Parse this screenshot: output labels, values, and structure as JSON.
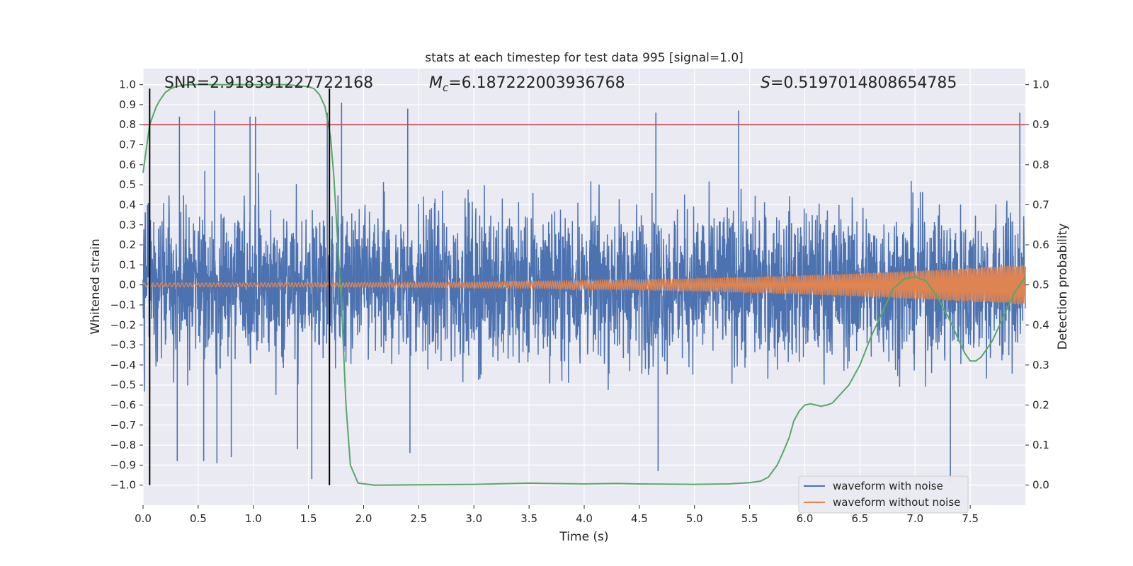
{
  "chart_data": {
    "type": "line",
    "title": "stats at each timestep for test data 995 [signal=1.0]",
    "xlabel": "Time (s)",
    "ylabel_left": "Whitened strain",
    "ylabel_right": "Detection probability",
    "xlim": [
      0.0,
      8.0
    ],
    "ylim_left": [
      -1.1,
      1.08
    ],
    "ylim_right": [
      -0.05,
      1.04
    ],
    "x_ticks": [
      "0.0",
      "0.5",
      "1.0",
      "1.5",
      "2.0",
      "2.5",
      "3.0",
      "3.5",
      "4.0",
      "4.5",
      "5.0",
      "5.5",
      "6.0",
      "6.5",
      "7.0",
      "7.5"
    ],
    "y_left_ticks": [
      "1.0",
      "0.9",
      "0.8",
      "0.7",
      "0.6",
      "0.5",
      "0.4",
      "0.3",
      "0.2",
      "0.1",
      "0.0",
      "−0.1",
      "−0.2",
      "−0.3",
      "−0.4",
      "−0.5",
      "−0.6",
      "−0.7",
      "−0.8",
      "−0.9",
      "−1.0"
    ],
    "y_right_ticks": [
      "1.0",
      "0.9",
      "0.8",
      "0.7",
      "0.6",
      "0.5",
      "0.4",
      "0.3",
      "0.2",
      "0.1",
      "0.0"
    ],
    "grid": true,
    "legend_placement": "lower-right",
    "annotations": [
      {
        "id": "snr",
        "label": "SNR=2.918391227722168"
      },
      {
        "id": "mc",
        "label_var": "M",
        "label_sub": "c",
        "label_value": "=6.187222003936768"
      },
      {
        "id": "s",
        "label_var": "S",
        "label_value": "=0.5197014808654785"
      }
    ],
    "threshold_line": {
      "axis": "right",
      "y": 0.9,
      "color": "#c44e52"
    },
    "vertical_markers": {
      "x": [
        0.06,
        1.69
      ],
      "y_range": [
        -1.0,
        0.98
      ],
      "color": "#000000"
    },
    "series": [
      {
        "name": "waveform with noise",
        "color": "#4c72b0",
        "axis": "left",
        "kind": "noise",
        "envelope_typical": 0.45,
        "peaks": [
          {
            "x": 0.33,
            "y": 0.84
          },
          {
            "x": 0.65,
            "y": 0.87
          },
          {
            "x": 0.97,
            "y": 0.84
          },
          {
            "x": 1.02,
            "y": 0.84
          },
          {
            "x": 1.67,
            "y": 0.86
          },
          {
            "x": 1.8,
            "y": 0.91
          },
          {
            "x": 2.4,
            "y": 0.88
          },
          {
            "x": 4.65,
            "y": 0.86
          },
          {
            "x": 5.4,
            "y": 0.87
          },
          {
            "x": 7.95,
            "y": 0.86
          },
          {
            "x": 0.31,
            "y": -0.88
          },
          {
            "x": 0.55,
            "y": -0.88
          },
          {
            "x": 0.67,
            "y": -0.89
          },
          {
            "x": 0.8,
            "y": -0.86
          },
          {
            "x": 1.4,
            "y": -0.82
          },
          {
            "x": 1.53,
            "y": -0.97
          },
          {
            "x": 2.42,
            "y": -0.84
          },
          {
            "x": 4.67,
            "y": -0.93
          },
          {
            "x": 7.32,
            "y": -1.0
          }
        ]
      },
      {
        "name": "waveform without noise",
        "color": "#dd8452",
        "axis": "left",
        "kind": "chirp",
        "amplitude_start": 0.01,
        "amplitude_end": 0.1
      },
      {
        "name": "",
        "color": "#55a868",
        "axis": "right",
        "kind": "line",
        "x": [
          0.0,
          0.03,
          0.06,
          0.1,
          0.12,
          0.15,
          0.2,
          0.25,
          0.3,
          0.4,
          0.6,
          1.0,
          1.3,
          1.5,
          1.55,
          1.6,
          1.65,
          1.7,
          1.73,
          1.76,
          1.8,
          1.84,
          1.88,
          1.95,
          2.1,
          3.0,
          3.5,
          4.0,
          4.3,
          4.5,
          5.0,
          5.3,
          5.5,
          5.6,
          5.67,
          5.75,
          5.8,
          5.86,
          5.9,
          5.95,
          6.0,
          6.05,
          6.1,
          6.15,
          6.2,
          6.25,
          6.3,
          6.4,
          6.5,
          6.6,
          6.7,
          6.8,
          6.9,
          7.0,
          7.1,
          7.2,
          7.3,
          7.4,
          7.45,
          7.5,
          7.55,
          7.6,
          7.7,
          7.8,
          7.9,
          7.95,
          8.0
        ],
        "y": [
          0.78,
          0.84,
          0.9,
          0.93,
          0.945,
          0.96,
          0.98,
          0.99,
          0.995,
          1.0,
          1.0,
          1.0,
          1.0,
          0.995,
          0.99,
          0.975,
          0.945,
          0.87,
          0.77,
          0.63,
          0.45,
          0.2,
          0.05,
          0.005,
          0.0,
          0.002,
          0.005,
          0.003,
          0.004,
          0.003,
          0.002,
          0.003,
          0.006,
          0.01,
          0.02,
          0.05,
          0.08,
          0.12,
          0.16,
          0.185,
          0.2,
          0.203,
          0.2,
          0.197,
          0.2,
          0.205,
          0.22,
          0.25,
          0.3,
          0.37,
          0.43,
          0.49,
          0.515,
          0.52,
          0.51,
          0.47,
          0.42,
          0.36,
          0.33,
          0.31,
          0.31,
          0.32,
          0.36,
          0.42,
          0.48,
          0.5,
          0.52
        ]
      }
    ]
  }
}
